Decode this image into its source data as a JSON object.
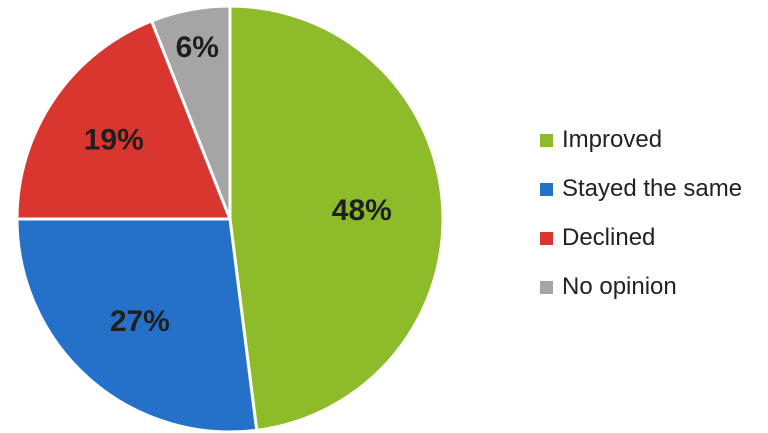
{
  "chart_data": {
    "type": "pie",
    "title": "",
    "categories": [
      "Improved",
      "Stayed the same",
      "Declined",
      "No opinion"
    ],
    "values": [
      48,
      27,
      19,
      6
    ],
    "labels": [
      "48%",
      "27%",
      "19%",
      "6%"
    ],
    "colors": [
      "#8dbb2a",
      "#2571c9",
      "#d8362f",
      "#a5a5a5"
    ],
    "start_angle_deg": 0,
    "direction": "clockwise",
    "legend_position": "right"
  }
}
